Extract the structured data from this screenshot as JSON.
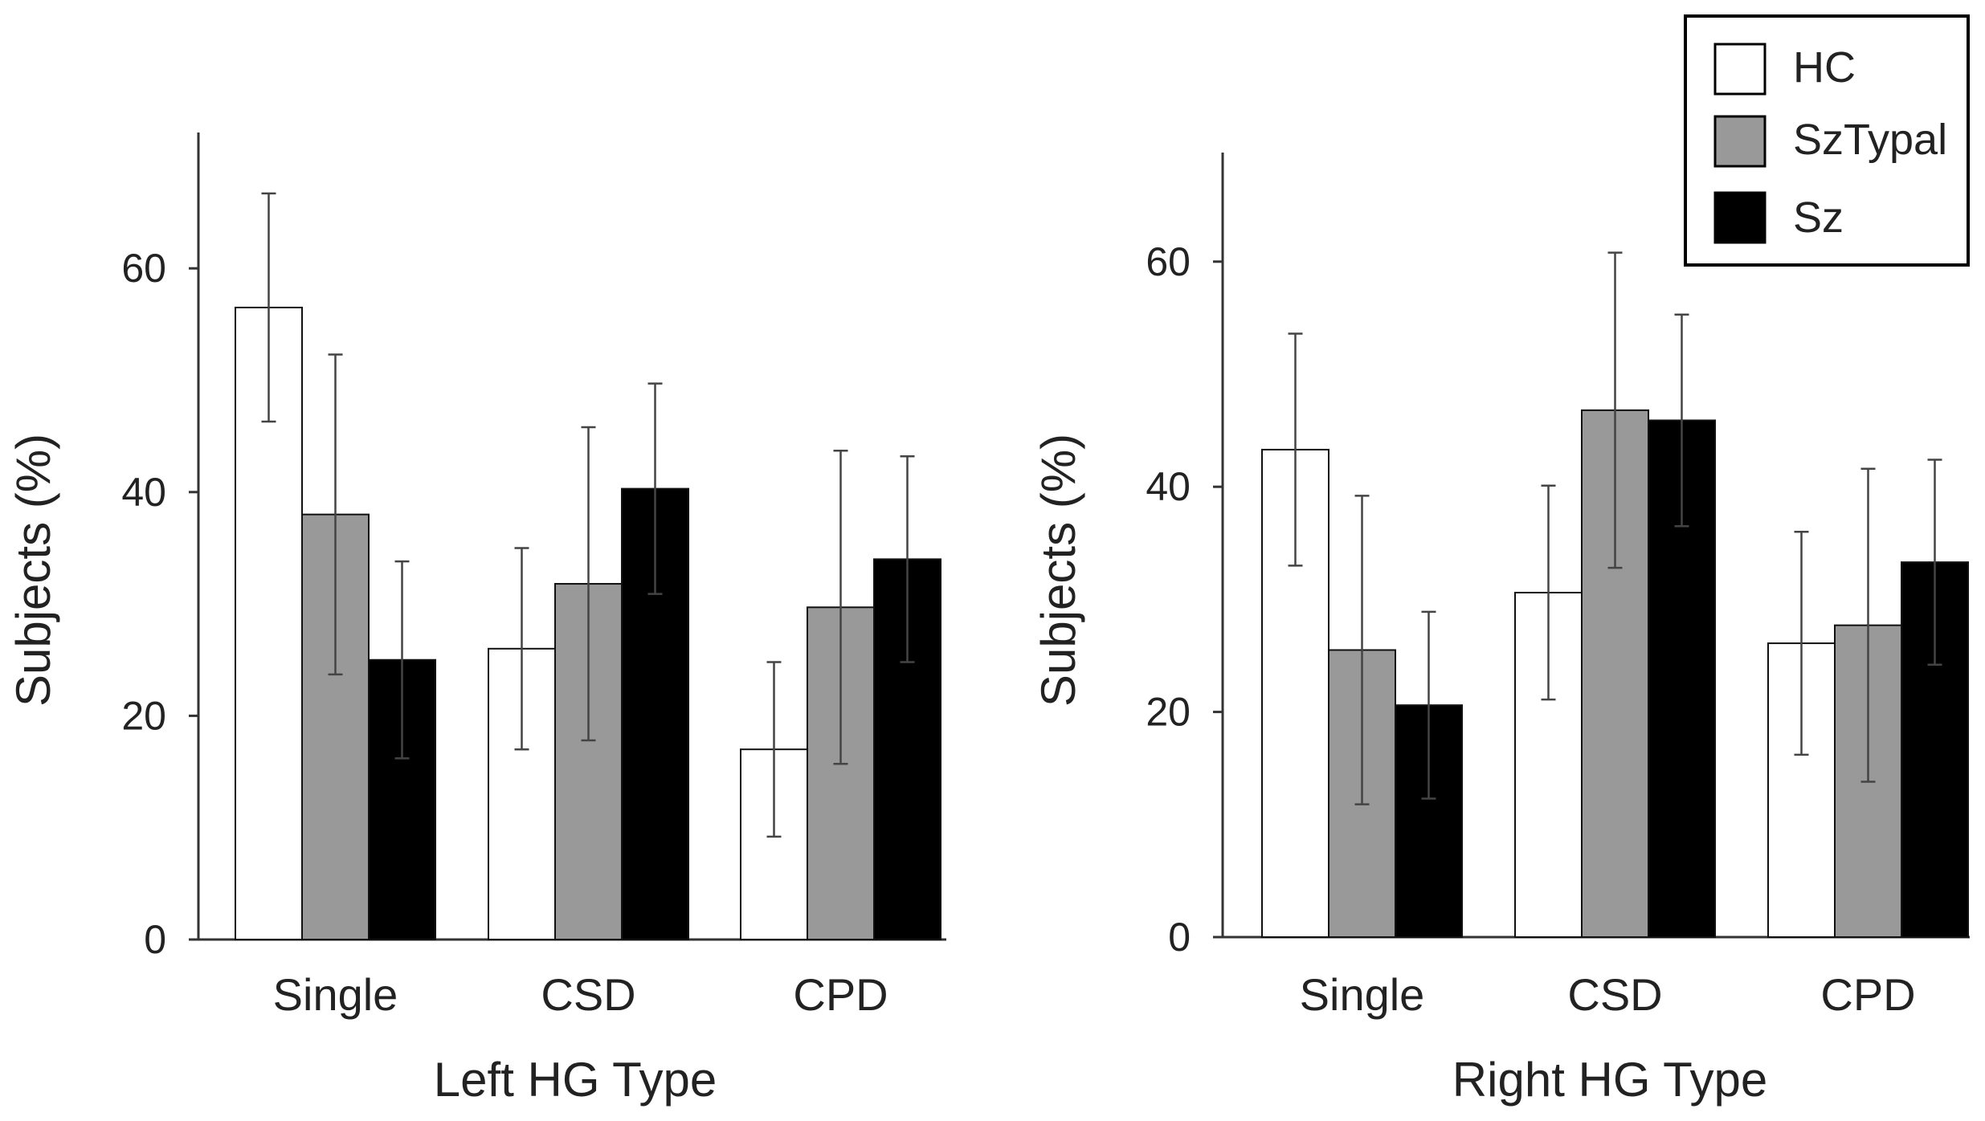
{
  "legend": {
    "position": "top-right",
    "entries": [
      {
        "name": "HC",
        "color": "#ffffff"
      },
      {
        "name": "SzTypal",
        "color": "#999999"
      },
      {
        "name": "Sz",
        "color": "#000000"
      }
    ]
  },
  "chart_data": [
    {
      "type": "bar",
      "title": "",
      "xlabel": "Left HG Type",
      "ylabel": "Subjects (%)",
      "ylim": [
        0,
        70
      ],
      "yticks": [
        0,
        20,
        40,
        60
      ],
      "categories": [
        "Single",
        "CSD",
        "CPD"
      ],
      "series": [
        {
          "name": "HC",
          "color": "#ffffff",
          "values": [
            56.5,
            26,
            17
          ],
          "errors": [
            10.2,
            9,
            7.8
          ]
        },
        {
          "name": "SzTypal",
          "color": "#999999",
          "values": [
            38,
            31.8,
            29.7
          ],
          "errors": [
            14.3,
            14,
            14
          ]
        },
        {
          "name": "Sz",
          "color": "#000000",
          "values": [
            25,
            40.3,
            34
          ],
          "errors": [
            8.8,
            9.4,
            9.2
          ]
        }
      ]
    },
    {
      "type": "bar",
      "title": "",
      "xlabel": "Right HG Type",
      "ylabel": "Subjects (%)",
      "ylim": [
        0,
        70
      ],
      "yticks": [
        0,
        20,
        40,
        60
      ],
      "categories": [
        "Single",
        "CSD",
        "CPD"
      ],
      "series": [
        {
          "name": "HC",
          "color": "#ffffff",
          "values": [
            43.3,
            30.6,
            26.1
          ],
          "errors": [
            10.3,
            9.5,
            9.9
          ]
        },
        {
          "name": "SzTypal",
          "color": "#999999",
          "values": [
            25.5,
            46.8,
            27.7
          ],
          "errors": [
            13.7,
            14,
            13.9
          ]
        },
        {
          "name": "Sz",
          "color": "#000000",
          "values": [
            20.6,
            45.9,
            33.3
          ],
          "errors": [
            8.3,
            9.4,
            9.1
          ]
        }
      ]
    }
  ]
}
